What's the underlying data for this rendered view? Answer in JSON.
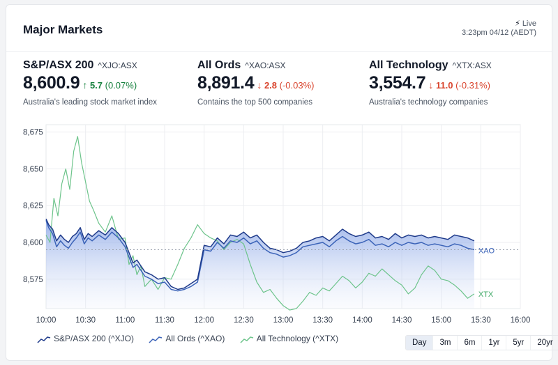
{
  "header": {
    "title": "Major Markets",
    "live_label": "Live",
    "updated": "3:23pm 04/12 (AEDT)"
  },
  "indices": [
    {
      "name": "S&P/ASX 200",
      "code": "^XJO:ASX",
      "price": "8,600.9",
      "direction": "up",
      "change": "5.7",
      "percent": "(0.07%)",
      "description": "Australia's leading stock market index"
    },
    {
      "name": "All Ords",
      "code": "^XAO:ASX",
      "price": "8,891.4",
      "direction": "down",
      "change": "2.8",
      "percent": "(-0.03%)",
      "description": "Contains the top 500 companies"
    },
    {
      "name": "All Technology",
      "code": "^XTX:ASX",
      "price": "3,554.7",
      "direction": "down",
      "change": "11.0",
      "percent": "(-0.31%)",
      "description": "Australia's technology companies"
    }
  ],
  "chart_data": {
    "type": "line",
    "x_ticks": [
      "10:00",
      "10:30",
      "11:00",
      "11:30",
      "12:00",
      "12:30",
      "13:00",
      "13:30",
      "14:00",
      "14:30",
      "15:00",
      "15:30",
      "16:00"
    ],
    "y_ticks": [
      "8,675",
      "8,650",
      "8,625",
      "8,600",
      "8,575"
    ],
    "ylim": [
      8555,
      8680
    ],
    "x_range_minutes": [
      0,
      360
    ],
    "reference_line": 8595,
    "grid": true,
    "legend_position": "bottom-left",
    "end_labels": [
      "XAO",
      "XTX"
    ],
    "series": [
      {
        "name": "S&P/ASX 200 (^XJO)",
        "color": "#1e3a8a",
        "x": [
          0,
          2,
          5,
          8,
          11,
          14,
          17,
          20,
          23,
          26,
          29,
          32,
          35,
          40,
          45,
          50,
          55,
          60,
          63,
          66,
          69,
          72,
          75,
          80,
          85,
          90,
          95,
          100,
          105,
          110,
          115,
          120,
          125,
          130,
          135,
          140,
          145,
          150,
          155,
          160,
          165,
          170,
          175,
          180,
          185,
          190,
          195,
          200,
          205,
          210,
          215,
          220,
          225,
          230,
          235,
          240,
          245,
          250,
          255,
          260,
          265,
          270,
          275,
          280,
          285,
          290,
          295,
          300,
          305,
          310,
          315,
          320,
          325
        ],
        "values": [
          8616,
          8612,
          8609,
          8601,
          8605,
          8602,
          8600,
          8604,
          8606,
          8610,
          8602,
          8606,
          8604,
          8608,
          8605,
          8610,
          8606,
          8600,
          8593,
          8586,
          8588,
          8584,
          8580,
          8578,
          8575,
          8576,
          8570,
          8568,
          8569,
          8572,
          8575,
          8598,
          8597,
          8603,
          8599,
          8605,
          8604,
          8607,
          8603,
          8605,
          8600,
          8596,
          8595,
          8593,
          8594,
          8596,
          8600,
          8601,
          8603,
          8604,
          8601,
          8605,
          8609,
          8606,
          8604,
          8605,
          8607,
          8603,
          8604,
          8602,
          8606,
          8603,
          8605,
          8604,
          8605,
          8603,
          8604,
          8603,
          8602,
          8605,
          8604,
          8603,
          8601
        ]
      },
      {
        "name": "All Ords (^XAO)",
        "color": "#3b63b8",
        "x": [
          0,
          2,
          5,
          8,
          11,
          14,
          17,
          20,
          23,
          26,
          29,
          32,
          35,
          40,
          45,
          50,
          55,
          60,
          63,
          66,
          69,
          72,
          75,
          80,
          85,
          90,
          95,
          100,
          105,
          110,
          115,
          120,
          125,
          130,
          135,
          140,
          145,
          150,
          155,
          160,
          165,
          170,
          175,
          180,
          185,
          190,
          195,
          200,
          205,
          210,
          215,
          220,
          225,
          230,
          235,
          240,
          245,
          250,
          255,
          260,
          265,
          270,
          275,
          280,
          285,
          290,
          295,
          300,
          305,
          310,
          315,
          320,
          325
        ],
        "values": [
          8615,
          8610,
          8606,
          8597,
          8601,
          8598,
          8596,
          8600,
          8603,
          8607,
          8599,
          8603,
          8601,
          8605,
          8602,
          8607,
          8603,
          8597,
          8590,
          8583,
          8585,
          8581,
          8577,
          8575,
          8572,
          8573,
          8568,
          8567,
          8568,
          8570,
          8573,
          8595,
          8594,
          8600,
          8596,
          8601,
          8600,
          8603,
          8599,
          8601,
          8596,
          8593,
          8592,
          8590,
          8591,
          8593,
          8597,
          8598,
          8599,
          8600,
          8597,
          8601,
          8604,
          8601,
          8599,
          8600,
          8602,
          8598,
          8599,
          8597,
          8600,
          8598,
          8600,
          8599,
          8600,
          8598,
          8599,
          8598,
          8597,
          8599,
          8598,
          8596,
          8595
        ]
      },
      {
        "name": "All Technology (^XTX)",
        "color": "#6dc48b",
        "x": [
          0,
          3,
          6,
          9,
          12,
          15,
          18,
          21,
          24,
          27,
          30,
          33,
          36,
          40,
          45,
          50,
          55,
          60,
          63,
          66,
          69,
          72,
          75,
          80,
          85,
          90,
          95,
          100,
          105,
          110,
          115,
          120,
          125,
          130,
          135,
          140,
          145,
          150,
          155,
          160,
          165,
          170,
          175,
          180,
          185,
          190,
          195,
          200,
          205,
          210,
          215,
          220,
          225,
          230,
          235,
          240,
          245,
          250,
          255,
          260,
          265,
          270,
          275,
          280,
          285,
          290,
          295,
          300,
          305,
          310,
          315,
          320,
          325
        ],
        "values": [
          8605,
          8600,
          8630,
          8618,
          8640,
          8650,
          8636,
          8662,
          8672,
          8654,
          8641,
          8628,
          8622,
          8613,
          8607,
          8618,
          8602,
          8603,
          8585,
          8591,
          8578,
          8584,
          8570,
          8575,
          8568,
          8576,
          8575,
          8585,
          8596,
          8603,
          8612,
          8606,
          8603,
          8601,
          8595,
          8600,
          8602,
          8599,
          8585,
          8573,
          8566,
          8568,
          8562,
          8557,
          8554,
          8555,
          8560,
          8566,
          8564,
          8569,
          8567,
          8572,
          8577,
          8574,
          8569,
          8573,
          8579,
          8577,
          8582,
          8578,
          8574,
          8571,
          8565,
          8569,
          8578,
          8584,
          8581,
          8575,
          8574,
          8571,
          8567,
          8562,
          8565
        ]
      }
    ]
  },
  "legend": [
    "S&P/ASX 200 (^XJO)",
    "All Ords (^XAO)",
    "All Technology (^XTX)"
  ],
  "ranges": [
    "Day",
    "3m",
    "6m",
    "1yr",
    "5yr",
    "20yr"
  ],
  "active_range": "Day",
  "colors": {
    "up": "#15803d",
    "down": "#d9442d",
    "area_top": "#8aa6e6"
  }
}
